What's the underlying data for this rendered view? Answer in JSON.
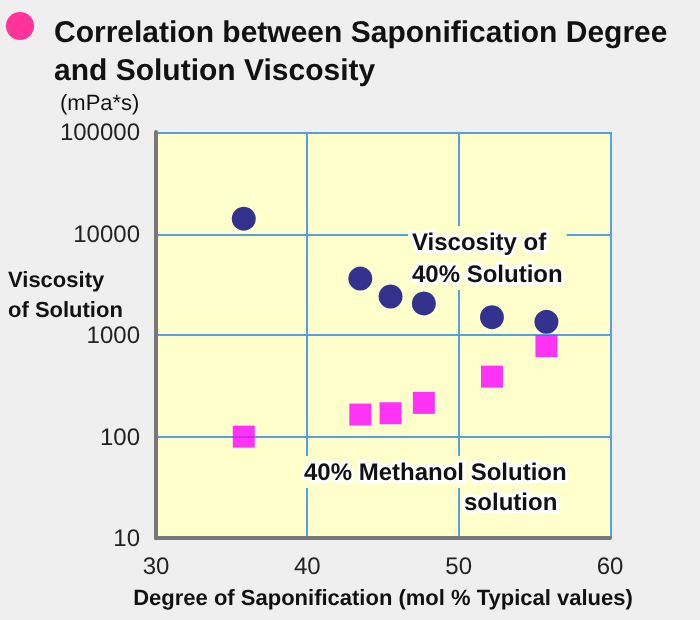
{
  "chart_data": {
    "type": "scatter",
    "title": "Correlation between Saponification Degree\nand Solution Viscosity",
    "xlabel": "Degree of Saponification (mol % Typical values)",
    "ylabel": "Viscosity\nof Solution",
    "annotations": [
      "(mPa*s)",
      "Viscosity of\n40% Solution",
      "40% Methanol Solution",
      "solution"
    ],
    "series": [
      {
        "color": "#000080",
        "marker": "circle",
        "x": [
          35.8,
          43.5,
          45.5,
          47.7,
          52.2,
          55.8
        ],
        "values": [
          14000,
          3600,
          2400,
          2050,
          1500,
          1350
        ]
      },
      {
        "color": "#ff00ff",
        "marker": "square",
        "x": [
          35.8,
          43.5,
          45.5,
          47.7,
          52.2,
          55.8
        ],
        "values": [
          100,
          165,
          170,
          215,
          390,
          780
        ]
      }
    ],
    "xlim": [
      30,
      60
    ],
    "xticks": [
      30,
      40,
      50,
      60
    ],
    "ylim": [
      10,
      100000
    ],
    "yticks": [
      10,
      100,
      1000,
      10000,
      100000
    ],
    "log": "y",
    "grid": true
  }
}
